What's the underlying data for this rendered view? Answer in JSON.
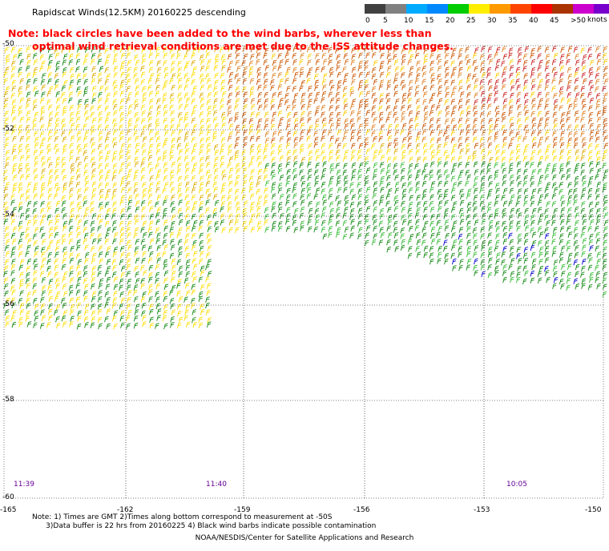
{
  "title": "Rapidscat Winds(12.5KM) 20160225 descending",
  "notice": {
    "line1": "Note: black circles have been added to the wind barbs, wherever less than",
    "line2": "optimal wind retrieval conditions are met due to the ISS attitude changes."
  },
  "legend": {
    "unit": "knots",
    "ticks": [
      "0",
      "5",
      "10",
      "15",
      "20",
      "25",
      "30",
      "35",
      "40",
      "45",
      ">50"
    ],
    "colors": [
      "#404040",
      "#808080",
      "#00aaff",
      "#0088ff",
      "#00cc00",
      "#ffee00",
      "#ff9900",
      "#ff4400",
      "#ff0000",
      "#aa3300",
      "#cc00cc",
      "#7700cc"
    ]
  },
  "axes": {
    "lat_labels": [
      "-50",
      "-52",
      "-54",
      "-56",
      "-58",
      "-60"
    ],
    "lon_labels": [
      "-165",
      "-162",
      "-159",
      "-156",
      "-153",
      "-150"
    ]
  },
  "times": [
    "11:39",
    "11:40",
    "10:05"
  ],
  "footnote": {
    "line1": "Note: 1) Times are GMT 2)Times along bottom correspond to measurement at -50S",
    "line2": "      3)Data buffer is 22 hrs from 20160225 4) Black wind barbs indicate possible contamination"
  },
  "credit": "NOAA/NESDIS/Center for Satellite Applications and Research"
}
